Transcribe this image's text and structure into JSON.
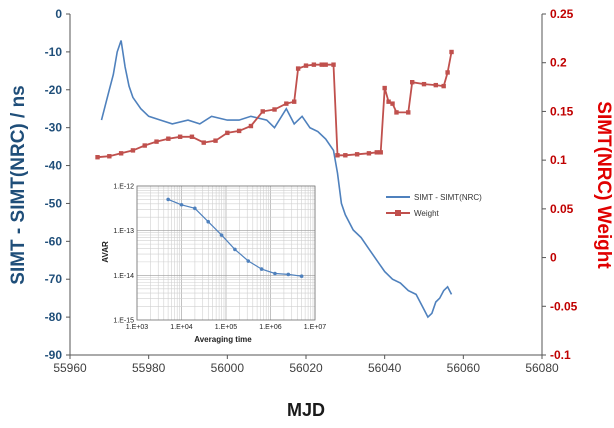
{
  "chart_data": [
    {
      "type": "line",
      "xlabel": "MJD",
      "ylabel_left": "SIMT - SIMT(NRC) / ns",
      "ylabel_right": "SIMT(NRC) Weight",
      "xlim": [
        55960,
        56080
      ],
      "ylim_left": [
        -90,
        0
      ],
      "ylim_right": [
        -0.1,
        0.25
      ],
      "x_ticks": [
        "55960",
        "55980",
        "56000",
        "56020",
        "56040",
        "56060",
        "56080"
      ],
      "y_left_ticks": [
        "0",
        "-10",
        "-20",
        "-30",
        "-40",
        "-50",
        "-60",
        "-70",
        "-80",
        "-90"
      ],
      "y_right_ticks": [
        "0.25",
        "0.2",
        "0.15",
        "0.1",
        "0.05",
        "0",
        "-0.05",
        "-0.1"
      ],
      "legend": [
        {
          "name": "SIMT - SIMT(NRC)",
          "color": "#4f81bd"
        },
        {
          "name": "Weight",
          "color": "#c0504d"
        }
      ],
      "series": [
        {
          "name": "SIMT - SIMT(NRC)",
          "axis": "left",
          "color": "#4f81bd",
          "points": [
            [
              55968,
              -28
            ],
            [
              55969,
              -24
            ],
            [
              55970,
              -20
            ],
            [
              55971,
              -16
            ],
            [
              55972,
              -10
            ],
            [
              55973,
              -7
            ],
            [
              55974,
              -14
            ],
            [
              55975,
              -19
            ],
            [
              55976,
              -22
            ],
            [
              55978,
              -25
            ],
            [
              55980,
              -27
            ],
            [
              55983,
              -28
            ],
            [
              55986,
              -29
            ],
            [
              55990,
              -28
            ],
            [
              55993,
              -29
            ],
            [
              55996,
              -27
            ],
            [
              56000,
              -28
            ],
            [
              56003,
              -28
            ],
            [
              56006,
              -27
            ],
            [
              56010,
              -28
            ],
            [
              56012,
              -30
            ],
            [
              56015,
              -25
            ],
            [
              56017,
              -29
            ],
            [
              56019,
              -27
            ],
            [
              56021,
              -30
            ],
            [
              56023,
              -31
            ],
            [
              56025,
              -33
            ],
            [
              56027,
              -36
            ],
            [
              56028,
              -42
            ],
            [
              56029,
              -50
            ],
            [
              56030,
              -53
            ],
            [
              56032,
              -57
            ],
            [
              56034,
              -59
            ],
            [
              56036,
              -62
            ],
            [
              56038,
              -65
            ],
            [
              56040,
              -68
            ],
            [
              56042,
              -70
            ],
            [
              56044,
              -71
            ],
            [
              56046,
              -73
            ],
            [
              56048,
              -74
            ],
            [
              56050,
              -78
            ],
            [
              56051,
              -80
            ],
            [
              56052,
              -79
            ],
            [
              56053,
              -76
            ],
            [
              56054,
              -75
            ],
            [
              56055,
              -73
            ],
            [
              56056,
              -72
            ],
            [
              56057,
              -74
            ]
          ]
        },
        {
          "name": "Weight",
          "axis": "right",
          "color": "#c0504d",
          "points": [
            [
              55967,
              0.103
            ],
            [
              55970,
              0.104
            ],
            [
              55973,
              0.107
            ],
            [
              55976,
              0.11
            ],
            [
              55979,
              0.115
            ],
            [
              55982,
              0.119
            ],
            [
              55985,
              0.122
            ],
            [
              55988,
              0.124
            ],
            [
              55991,
              0.124
            ],
            [
              55994,
              0.118
            ],
            [
              55997,
              0.12
            ],
            [
              56000,
              0.128
            ],
            [
              56003,
              0.13
            ],
            [
              56006,
              0.135
            ],
            [
              56009,
              0.15
            ],
            [
              56012,
              0.152
            ],
            [
              56015,
              0.158
            ],
            [
              56017,
              0.16
            ],
            [
              56018,
              0.194
            ],
            [
              56020,
              0.197
            ],
            [
              56022,
              0.198
            ],
            [
              56024,
              0.198
            ],
            [
              56025,
              0.198
            ],
            [
              56027,
              0.198
            ],
            [
              56028,
              0.105
            ],
            [
              56030,
              0.105
            ],
            [
              56033,
              0.106
            ],
            [
              56036,
              0.107
            ],
            [
              56038,
              0.108
            ],
            [
              56039,
              0.108
            ],
            [
              56040,
              0.174
            ],
            [
              56041,
              0.16
            ],
            [
              56042,
              0.158
            ],
            [
              56043,
              0.149
            ],
            [
              56046,
              0.149
            ],
            [
              56047,
              0.18
            ],
            [
              56050,
              0.178
            ],
            [
              56053,
              0.177
            ],
            [
              56055,
              0.176
            ],
            [
              56056,
              0.19
            ],
            [
              56057,
              0.211
            ]
          ]
        }
      ]
    },
    {
      "type": "line",
      "log_x": true,
      "log_y": true,
      "xlabel": "Averaging time",
      "ylabel": "AVAR",
      "x_ticks": [
        "1.E+03",
        "1.E+04",
        "1.E+05",
        "1.E+06",
        "1.E+07"
      ],
      "y_ticks": [
        "1.E-12",
        "1.E-13",
        "1.E-14",
        "1.E-15"
      ],
      "xlim_exp": [
        3,
        7
      ],
      "ylim_exp": [
        -15,
        -12
      ],
      "grid": true,
      "series": [
        {
          "color": "#4f81bd",
          "points_exp": [
            [
              3.7,
              -12.3
            ],
            [
              4.0,
              -12.42
            ],
            [
              4.3,
              -12.5
            ],
            [
              4.6,
              -12.8
            ],
            [
              4.9,
              -13.1
            ],
            [
              5.2,
              -13.42
            ],
            [
              5.5,
              -13.68
            ],
            [
              5.8,
              -13.86
            ],
            [
              6.1,
              -13.96
            ],
            [
              6.4,
              -13.98
            ],
            [
              6.7,
              -14.02
            ]
          ]
        }
      ]
    }
  ]
}
